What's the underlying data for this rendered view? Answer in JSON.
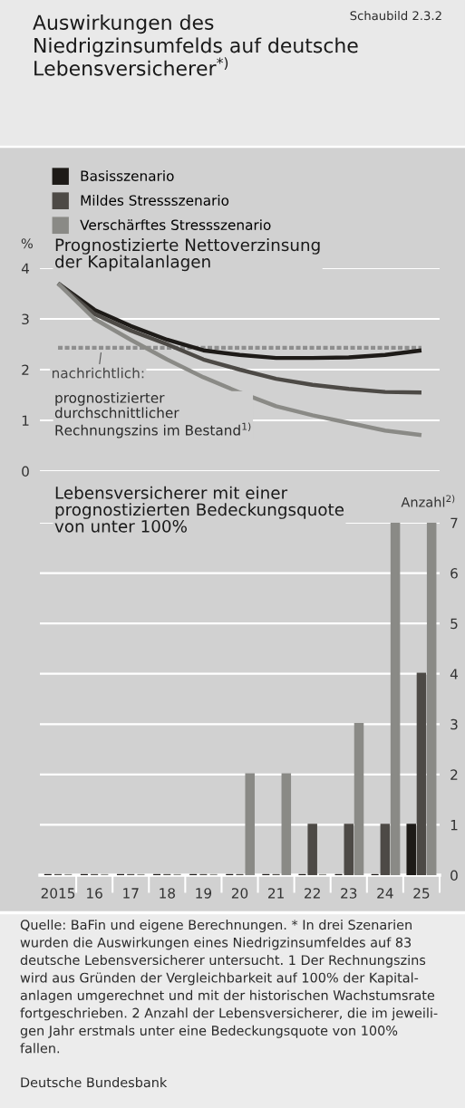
{
  "chart_data": [
    {
      "type": "line",
      "title": "Auswirkungen des\nNiedrigzinsumfelds auf deutsche\nLebensversicherer$^{*)}$",
      "subtitle": "Prognostizierte Nettoverzinsung\nder Kapitalanlagen",
      "ylabel": "%",
      "categories": [
        "2015",
        "16",
        "17",
        "18",
        "19",
        "20",
        "21",
        "22",
        "23",
        "24",
        "25"
      ],
      "series": [
        {
          "name": "Basisszenario",
          "color": "#1e1b18",
          "values": [
            3.7,
            3.18,
            2.86,
            2.59,
            2.38,
            2.29,
            2.23,
            2.23,
            2.24,
            2.29,
            2.38
          ]
        },
        {
          "name": "Mildes Stressszenario",
          "color": "#4d4a46",
          "values": [
            3.7,
            3.1,
            2.77,
            2.5,
            2.2,
            2.0,
            1.82,
            1.7,
            1.62,
            1.56,
            1.55
          ]
        },
        {
          "name": "Verschärftes Stressszenario",
          "color": "#8a8a86",
          "values": [
            3.7,
            3.0,
            2.59,
            2.2,
            1.85,
            1.55,
            1.28,
            1.1,
            0.95,
            0.8,
            0.71
          ]
        },
        {
          "color": "#8e8e8e",
          "line_style": "dashed",
          "values": [
            2.43,
            2.43,
            2.43,
            2.43,
            2.43,
            2.43,
            2.43,
            2.43,
            2.43,
            2.43,
            2.43
          ]
        }
      ],
      "ylim": [
        0,
        4
      ],
      "yticks": [
        0,
        1,
        2,
        3,
        4
      ],
      "grid": "y",
      "legend": "top left",
      "tick_labels": "y",
      "annotations": [
        "Schaubild 2.3.2",
        {
          "text": "nachrichtlich:",
          "x": "16",
          "y": 2.43
        },
        "prognostizierter\ndurchschnittlicher\nRechnungszins im Bestand$^{1)}$"
      ]
    },
    {
      "type": "bar",
      "title": "Lebensversicherer mit einer\nprognostizierten Bedeckungsquote\nvon unter 100%",
      "ylabel": "Anzahl$^{2)}$",
      "categories": [
        "2015",
        "16",
        "17",
        "18",
        "19",
        "20",
        "21",
        "22",
        "23",
        "24",
        "25"
      ],
      "series": [
        {
          "color": "#1e1b18",
          "values": [
            0,
            0,
            0,
            0,
            0,
            0,
            0,
            0,
            0,
            0,
            1
          ]
        },
        {
          "color": "#4d4a46",
          "values": [
            0,
            0,
            0,
            0,
            0,
            0,
            0,
            1,
            1,
            1,
            4
          ]
        },
        {
          "color": "#8a8a86",
          "values": [
            0,
            0,
            0,
            0,
            0,
            2,
            2,
            0,
            3,
            7,
            7
          ]
        }
      ],
      "ylim": [
        0,
        7
      ],
      "yticks": [
        0,
        1,
        2,
        3,
        4,
        5,
        6,
        7
      ],
      "grid": "y",
      "annotations": [
        "Quelle: BaFin und eigene Berechnungen. * In drei Szenarien\nwurden die Auswirkungen eines Niedrigzinsumfeldes auf 83\ndeutsche Lebensversicherer untersucht. 1 Der Rechnungszins\nwird aus Gründen der Vergleichbarkeit auf 100% der Kapital-\nanlagen umgerechnet und mit der historischen Wachstumsrate\nfortgeschrieben. 2 Anzahl der Lebensversicherer, die im jeweili-\ngen Jahr erstmals unter eine Bedeckungsquote von 100%\nfallen.",
        "Deutsche Bundesbank"
      ]
    }
  ]
}
